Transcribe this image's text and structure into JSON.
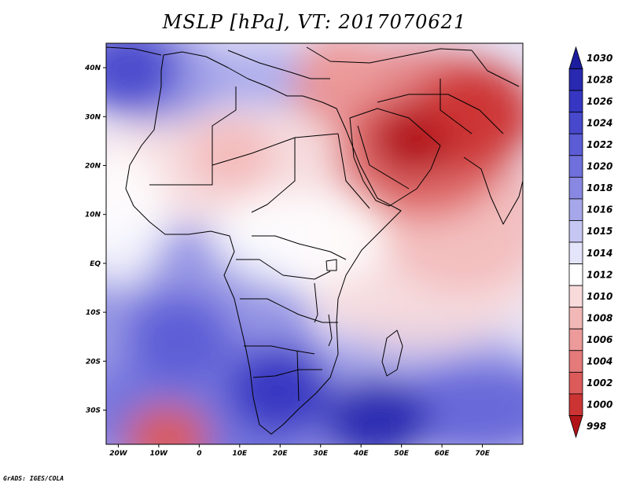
{
  "title": "MSLP [hPa], VT: 2017070621",
  "credit": "GrADS: IGES/COLA",
  "colors": {
    "blue_max": "#1c1c9e",
    "white": "#ffffff",
    "red_max": "#b01418"
  },
  "chart_data": {
    "type": "heatmap",
    "variable": "MSLP",
    "units": "hPa",
    "valid_time": "2017070621",
    "lon_range": [
      -23,
      80
    ],
    "lat_range": [
      -37,
      45
    ],
    "x_ticks": [
      {
        "value": -20,
        "label": "20W"
      },
      {
        "value": -10,
        "label": "10W"
      },
      {
        "value": 0,
        "label": "0"
      },
      {
        "value": 10,
        "label": "10E"
      },
      {
        "value": 20,
        "label": "20E"
      },
      {
        "value": 30,
        "label": "30E"
      },
      {
        "value": 40,
        "label": "40E"
      },
      {
        "value": 50,
        "label": "50E"
      },
      {
        "value": 60,
        "label": "60E"
      },
      {
        "value": 70,
        "label": "70E"
      }
    ],
    "y_ticks": [
      {
        "value": 40,
        "label": "40N"
      },
      {
        "value": 30,
        "label": "30N"
      },
      {
        "value": 20,
        "label": "20N"
      },
      {
        "value": 10,
        "label": "10N"
      },
      {
        "value": 0,
        "label": "EQ"
      },
      {
        "value": -10,
        "label": "10S"
      },
      {
        "value": -20,
        "label": "20S"
      },
      {
        "value": -30,
        "label": "30S"
      }
    ],
    "colorbar": {
      "levels": [
        1030,
        1028,
        1026,
        1024,
        1022,
        1020,
        1018,
        1016,
        1015,
        1014,
        1012,
        1010,
        1008,
        1006,
        1004,
        1002,
        1000,
        998
      ],
      "colors": [
        "#1c1c9e",
        "#2828b0",
        "#3636c2",
        "#4848cc",
        "#5c5cd6",
        "#7070dc",
        "#8888e2",
        "#a6a6ea",
        "#c6c6f2",
        "#e4e4fa",
        "#ffffff",
        "#f8dada",
        "#f2b8b8",
        "#ec9a9a",
        "#e47a7a",
        "#dc5a5a",
        "#cc3434",
        "#b01418"
      ]
    },
    "pressure_centers": [
      {
        "type": "high",
        "lon": -18,
        "lat": 40,
        "value": 1024
      },
      {
        "type": "high",
        "lon": 20,
        "lat": -26,
        "value": 1026
      },
      {
        "type": "high",
        "lon": 44,
        "lat": -32,
        "value": 1028
      },
      {
        "type": "high",
        "lon": -5,
        "lat": -15,
        "value": 1022
      },
      {
        "type": "low",
        "lon": 53,
        "lat": 25,
        "value": 999
      },
      {
        "type": "low",
        "lon": 68,
        "lat": 31,
        "value": 1000
      },
      {
        "type": "low",
        "lon": -8,
        "lat": -36,
        "value": 1003
      },
      {
        "type": "low",
        "lon": 8,
        "lat": 22,
        "value": 1008
      },
      {
        "type": "low",
        "lon": 35,
        "lat": 40,
        "value": 1006
      }
    ]
  }
}
